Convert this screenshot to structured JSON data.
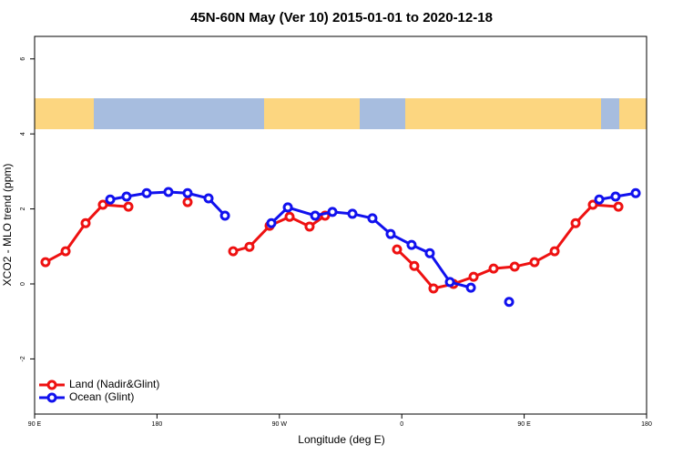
{
  "chart_data": {
    "type": "line",
    "title": "45N-60N May (Ver 10)   2015-01-01 to 2020-12-18",
    "x_label": "Longitude (deg E)",
    "y_label": "XCO2 - MLO trend (ppm)",
    "xlim": [
      90,
      540
    ],
    "ylim": [
      -3.47,
      6.6
    ],
    "xticks": [
      {
        "value": 90,
        "label": "90 E"
      },
      180,
      {
        "value": 270,
        "label": "90 W"
      },
      {
        "value": 360,
        "label": "0"
      },
      {
        "value": 450,
        "label": "90 E"
      },
      {
        "value": 540,
        "label": "180"
      }
    ],
    "yticks": [
      -2,
      0,
      2,
      4,
      6
    ],
    "legend": "bottom-left",
    "series": [
      {
        "name": "Land (Nadir&Glint)",
        "color": "#ee1111",
        "x": [
          98,
          112.8,
          127.5,
          140.2,
          159,
          null,
          202.5,
          null,
          236,
          248,
          262.8,
          277.5,
          292.2,
          303.6,
          null,
          356.5,
          369.2,
          383.3,
          398,
          412.8,
          427.5,
          443,
          457.6,
          472.4,
          487.8,
          500.5,
          519.3
        ],
        "values": [
          0.58,
          0.87,
          1.62,
          2.11,
          2.06,
          null,
          2.18,
          null,
          0.87,
          0.99,
          1.55,
          1.79,
          1.53,
          1.82,
          null,
          0.92,
          0.48,
          -0.12,
          0,
          0.19,
          0.41,
          0.46,
          0.58,
          0.87,
          1.62,
          2.11,
          2.06
        ]
      },
      {
        "name": "Ocean (Glint)",
        "color": "#1111ee",
        "x": [
          145.6,
          157.6,
          172.4,
          188.4,
          202.5,
          217.9,
          230,
          null,
          264.1,
          276.2,
          296.3,
          309,
          323.7,
          338.4,
          351.8,
          367.2,
          380.6,
          395.4,
          410.8,
          null,
          438.9,
          null,
          505.2,
          517.2,
          532
        ],
        "values": [
          2.25,
          2.33,
          2.42,
          2.45,
          2.42,
          2.28,
          1.82,
          null,
          1.62,
          2.04,
          1.82,
          1.92,
          1.87,
          1.75,
          1.33,
          1.04,
          0.82,
          0.05,
          -0.1,
          null,
          -0.48,
          null,
          2.25,
          2.33,
          2.42
        ]
      }
    ]
  }
}
